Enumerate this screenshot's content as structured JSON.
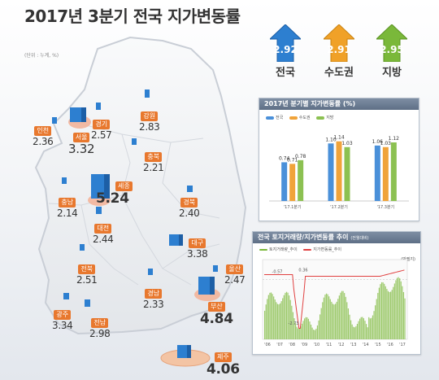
{
  "title": "2017년 3분기 전국 지가변동률",
  "unit_note": "(단위 : 누계, %)",
  "summary": [
    {
      "label": "전국",
      "value": "2.92",
      "color": "#2d7fd0"
    },
    {
      "label": "수도권",
      "value": "2.91",
      "color": "#f0a128"
    },
    {
      "label": "지방",
      "value": "2.95",
      "color": "#7ab83a"
    }
  ],
  "regions": {
    "incheon": {
      "name": "인천",
      "value": "2.36"
    },
    "seoul": {
      "name": "서울",
      "value": "3.32"
    },
    "gyeonggi": {
      "name": "경기",
      "value": "2.57"
    },
    "gangwon": {
      "name": "강원",
      "value": "2.83"
    },
    "chungbuk": {
      "name": "충북",
      "value": "2.21"
    },
    "sejong": {
      "name": "세종",
      "value": "5.24"
    },
    "chungnam": {
      "name": "충남",
      "value": "2.14"
    },
    "daejeon": {
      "name": "대전",
      "value": "2.44"
    },
    "gyeongbuk": {
      "name": "경북",
      "value": "2.40"
    },
    "daegu": {
      "name": "대구",
      "value": "3.38"
    },
    "jeonbuk": {
      "name": "전북",
      "value": "2.51"
    },
    "ulsan": {
      "name": "울산",
      "value": "2.47"
    },
    "gyeongnam": {
      "name": "경남",
      "value": "2.33"
    },
    "busan": {
      "name": "부산",
      "value": "4.84"
    },
    "gwangju": {
      "name": "광주",
      "value": "3.34"
    },
    "jeonnam": {
      "name": "전남",
      "value": "2.98"
    },
    "jeju": {
      "name": "제주",
      "value": "4.06"
    }
  },
  "chart_data": [
    {
      "type": "bar",
      "title": "2017년 분기별 지가변동률 (%)",
      "categories": [
        "'17.1분기",
        "'17.2분기",
        "'17.3분기"
      ],
      "series": [
        {
          "name": "전국",
          "values": [
            0.74,
            1.1,
            1.06
          ],
          "color": "#4a90d9"
        },
        {
          "name": "수도권",
          "values": [
            0.71,
            1.14,
            1.03
          ],
          "color": "#f0a33a"
        },
        {
          "name": "지방",
          "values": [
            0.78,
            1.03,
            1.12
          ],
          "color": "#8cc152"
        }
      ],
      "ylim": [
        0,
        1.4
      ]
    },
    {
      "type": "line",
      "title": "전국 토지거래량/지가변동률 추이",
      "subtitle": "(전월대비)",
      "legend": [
        "토지거래량_추이",
        "지가변동률_추이"
      ],
      "y_right_label": "(만필지)",
      "x_ticks": [
        "'06",
        "'07",
        "'08",
        "'09",
        "'10",
        "'11",
        "'12",
        "'13",
        "'14",
        "'15",
        "'16",
        "'17"
      ],
      "annotations": [
        "-0.57",
        "0.36",
        "-2.73"
      ]
    }
  ]
}
